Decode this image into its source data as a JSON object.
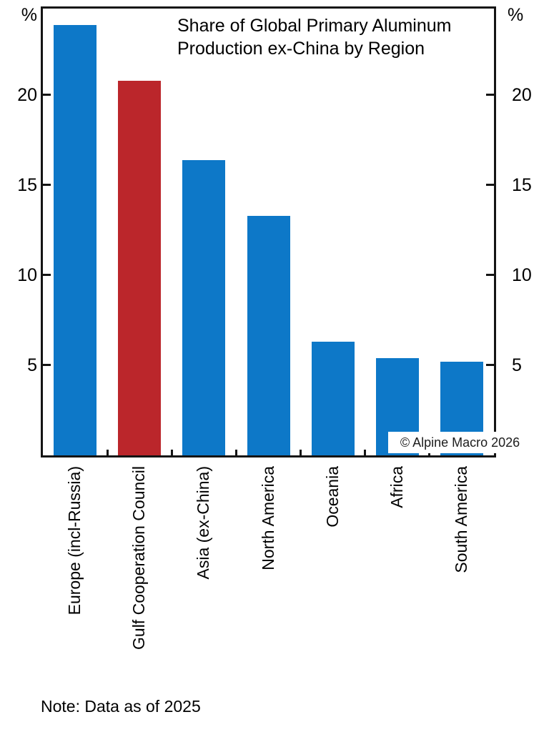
{
  "title": {
    "line1": "Share of Global Primary Aluminum",
    "line2": "Production ex-China by Region"
  },
  "axis": {
    "unit_left": "%",
    "unit_right": "%"
  },
  "copyright": "© Alpine Macro 2026",
  "note": "Note: Data as of 2025",
  "colors": {
    "bar_blue": "#0d78c8",
    "bar_red": "#bb262b",
    "axis": "#141414"
  },
  "chart_data": {
    "type": "bar",
    "title": "Share of Global Primary Aluminum Production ex-China by Region",
    "categories": [
      "Europe (incl-Russia)",
      "Gulf Cooperation Council",
      "Asia (ex-China)",
      "North America",
      "Oceania",
      "Africa",
      "South America"
    ],
    "values": [
      23.9,
      20.8,
      16.4,
      13.3,
      6.3,
      5.4,
      5.2
    ],
    "bar_colors": [
      "blue",
      "red",
      "blue",
      "blue",
      "blue",
      "blue",
      "blue"
    ],
    "xlabel": "",
    "ylabel": "%",
    "ylim": [
      0,
      24.8
    ],
    "yticks": [
      5,
      10,
      15,
      20
    ],
    "grid": false,
    "legend": "none",
    "note": "Note: Data as of 2025",
    "source": "© Alpine Macro 2026"
  }
}
